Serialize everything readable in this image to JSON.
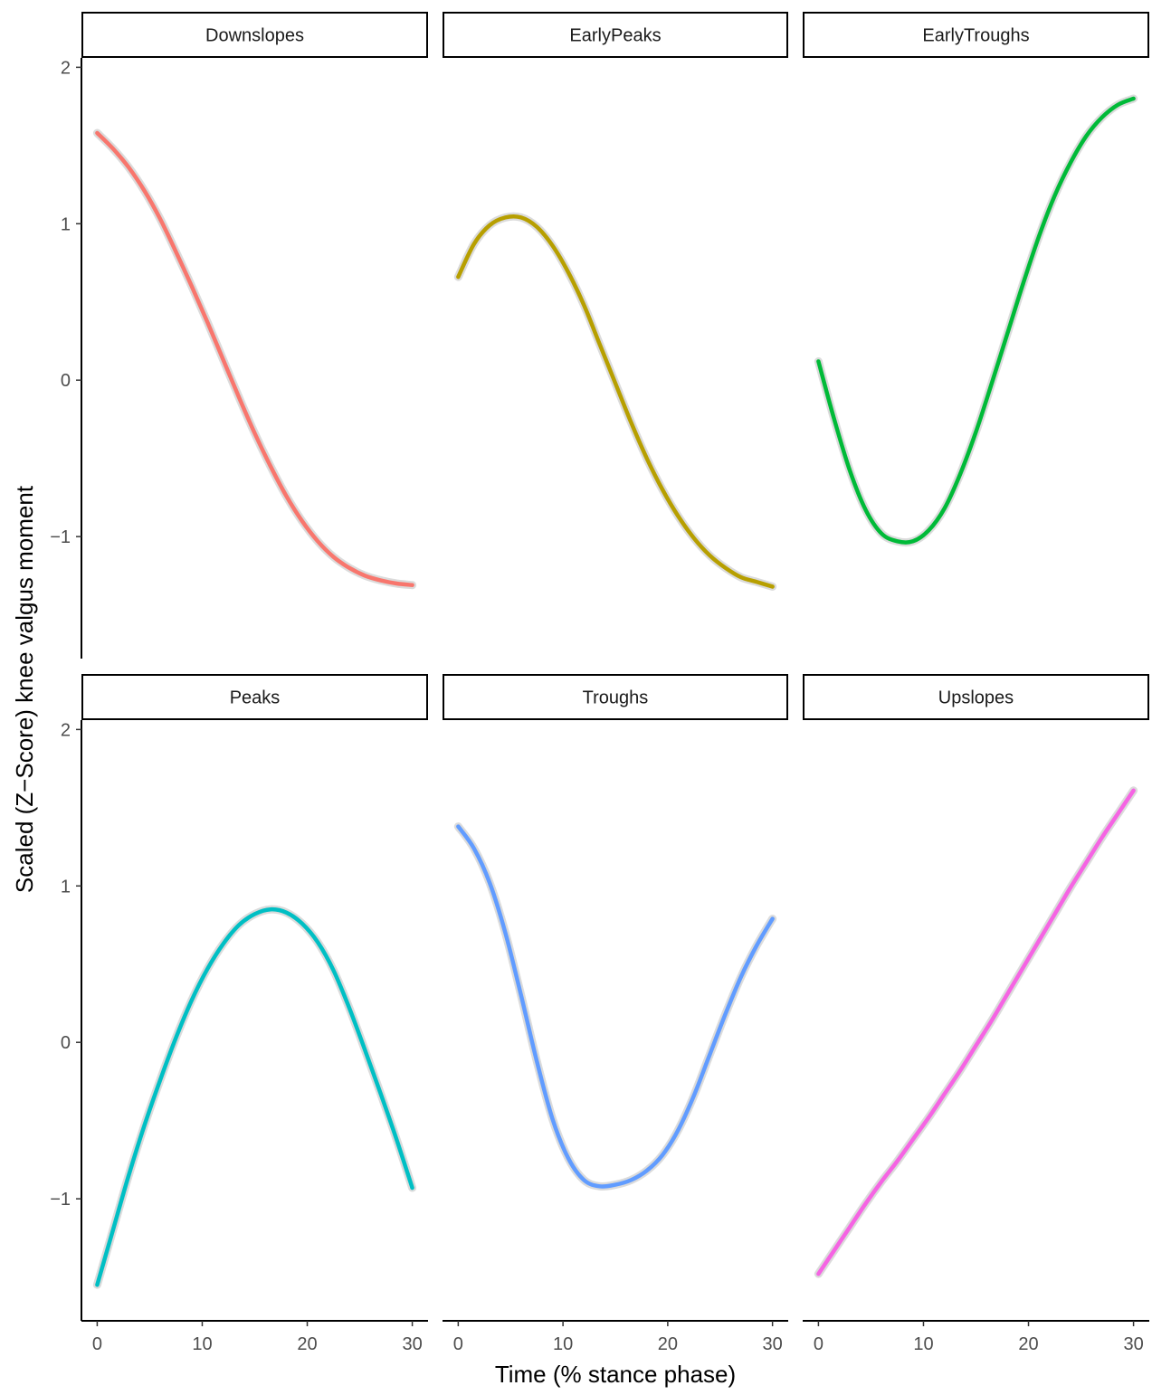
{
  "chart_data": {
    "type": "line",
    "layout": "facet-grid-2x3",
    "xlabel": "Time (% stance phase)",
    "ylabel": "Scaled (Z−Score) knee valgus moment",
    "xlim": [
      -1.5,
      31.5
    ],
    "ylim": [
      -1.78,
      2.06
    ],
    "xticks": [
      0,
      10,
      20,
      30
    ],
    "yticks": [
      -1,
      0,
      1,
      2
    ],
    "x_tick_labels": [
      "0",
      "10",
      "20",
      "30"
    ],
    "y_tick_labels": [
      "−1",
      "0",
      "1",
      "2"
    ],
    "grid": false,
    "legend": "none",
    "facets": [
      {
        "name": "Downslopes",
        "color": "#F8766D",
        "x": [
          0,
          1.5,
          3,
          4.5,
          6,
          7.5,
          9,
          10.5,
          12,
          13.5,
          15,
          16.5,
          18,
          19.5,
          21,
          22.5,
          24,
          25.5,
          27,
          28.5,
          30
        ],
        "y": [
          1.58,
          1.48,
          1.36,
          1.21,
          1.03,
          0.82,
          0.6,
          0.37,
          0.13,
          -0.11,
          -0.34,
          -0.55,
          -0.74,
          -0.9,
          -1.03,
          -1.13,
          -1.2,
          -1.25,
          -1.28,
          -1.3,
          -1.31
        ]
      },
      {
        "name": "EarlyPeaks",
        "color": "#B79F00",
        "x": [
          0,
          1.5,
          3,
          4.5,
          6,
          7.5,
          9,
          10.5,
          12,
          13.5,
          15,
          16.5,
          18,
          19.5,
          21,
          22.5,
          24,
          25.5,
          27,
          28.5,
          30
        ],
        "y": [
          0.66,
          0.87,
          0.99,
          1.04,
          1.04,
          0.98,
          0.86,
          0.69,
          0.48,
          0.23,
          -0.02,
          -0.27,
          -0.5,
          -0.7,
          -0.87,
          -1.01,
          -1.12,
          -1.2,
          -1.26,
          -1.29,
          -1.32
        ]
      },
      {
        "name": "EarlyTroughs",
        "color": "#00BA38",
        "x": [
          0,
          1.5,
          3,
          4.5,
          6,
          7.5,
          9,
          10.5,
          12,
          13.5,
          15,
          16.5,
          18,
          19.5,
          21,
          22.5,
          24,
          25.5,
          27,
          28.5,
          30
        ],
        "y": [
          0.12,
          -0.25,
          -0.58,
          -0.83,
          -0.98,
          -1.03,
          -1.03,
          -0.96,
          -0.82,
          -0.6,
          -0.33,
          -0.02,
          0.3,
          0.62,
          0.92,
          1.18,
          1.39,
          1.56,
          1.68,
          1.76,
          1.8
        ]
      },
      {
        "name": "Peaks",
        "color": "#00BFC4",
        "x": [
          0,
          1.5,
          3,
          4.5,
          6,
          7.5,
          9,
          10.5,
          12,
          13.5,
          15,
          16.5,
          18,
          19.5,
          21,
          22.5,
          24,
          25.5,
          27,
          28.5,
          30
        ],
        "y": [
          -1.55,
          -1.2,
          -0.85,
          -0.53,
          -0.24,
          0.03,
          0.27,
          0.47,
          0.63,
          0.75,
          0.82,
          0.85,
          0.83,
          0.76,
          0.64,
          0.46,
          0.22,
          -0.05,
          -0.33,
          -0.62,
          -0.93
        ]
      },
      {
        "name": "Troughs",
        "color": "#619CFF",
        "x": [
          0,
          1.5,
          3,
          4.5,
          6,
          7.5,
          9,
          10.5,
          12,
          13.5,
          15,
          16.5,
          18,
          19.5,
          21,
          22.5,
          24,
          25.5,
          27,
          28.5,
          30
        ],
        "y": [
          1.38,
          1.24,
          1.02,
          0.7,
          0.3,
          -0.12,
          -0.49,
          -0.74,
          -0.88,
          -0.92,
          -0.91,
          -0.88,
          -0.82,
          -0.72,
          -0.56,
          -0.34,
          -0.08,
          0.18,
          0.42,
          0.62,
          0.79
        ]
      },
      {
        "name": "Upslopes",
        "color": "#F564E3",
        "x": [
          0,
          1.5,
          3,
          4.5,
          6,
          7.5,
          9,
          10.5,
          12,
          13.5,
          15,
          16.5,
          18,
          19.5,
          21,
          22.5,
          24,
          25.5,
          27,
          28.5,
          30
        ],
        "y": [
          -1.48,
          -1.33,
          -1.18,
          -1.03,
          -0.89,
          -0.76,
          -0.62,
          -0.48,
          -0.33,
          -0.18,
          -0.02,
          0.14,
          0.31,
          0.48,
          0.65,
          0.82,
          0.99,
          1.15,
          1.31,
          1.46,
          1.61
        ]
      }
    ]
  }
}
